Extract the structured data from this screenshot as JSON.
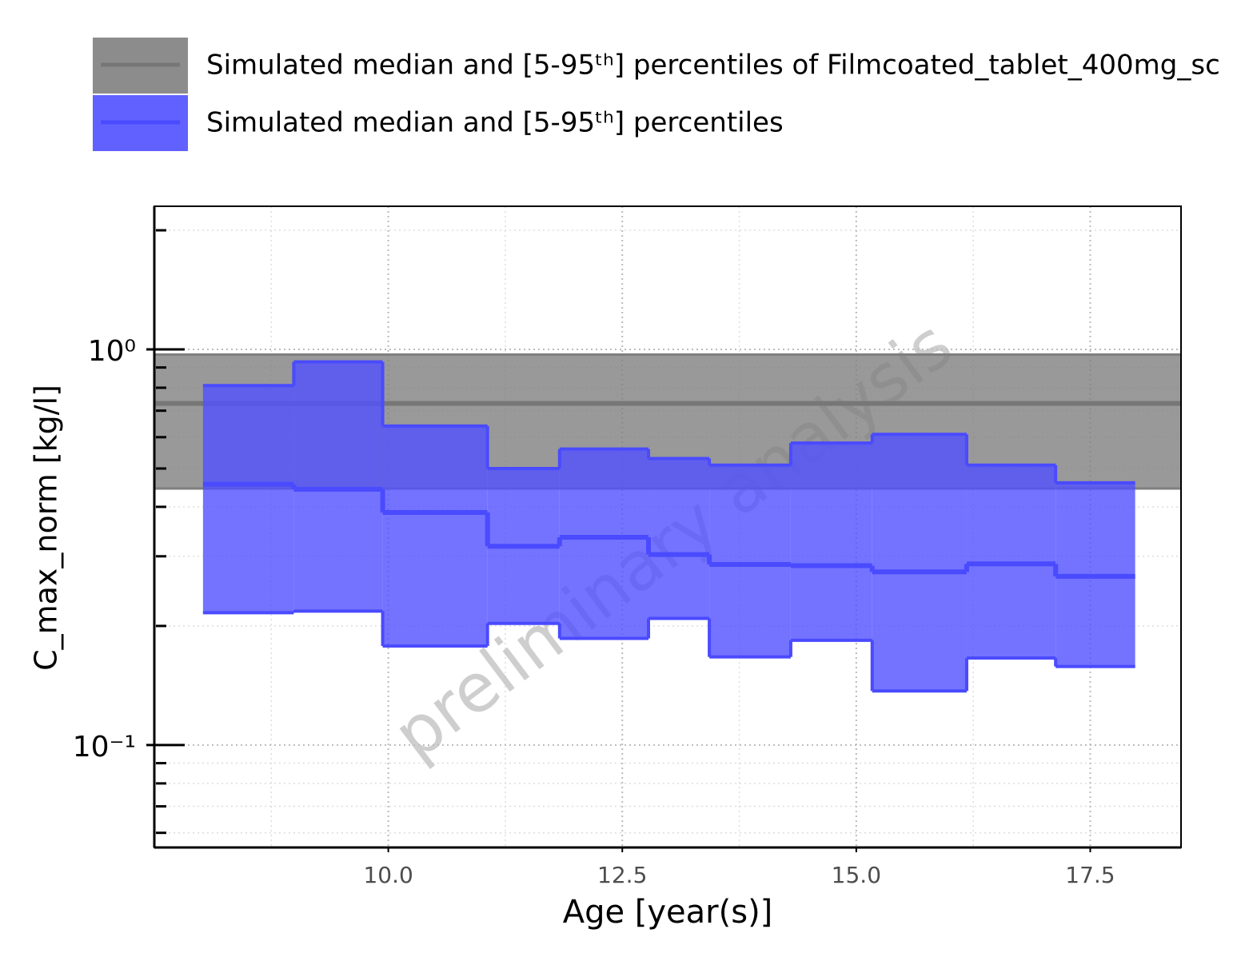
{
  "chart_data": {
    "type": "step-band",
    "xlabel": "Age [year(s)]",
    "ylabel": "C_max_norm [kg/l]",
    "watermark": "preliminary analysis",
    "xlim": [
      7.5,
      18.47
    ],
    "xticks": [
      {
        "value": 10,
        "label": "10.0"
      },
      {
        "value": 12.5,
        "label": "12.5"
      },
      {
        "value": 15,
        "label": "15.0"
      },
      {
        "value": 17.5,
        "label": "17.5"
      }
    ],
    "xminor": [
      8.75,
      11.25,
      13.75,
      16.25
    ],
    "ylim": [
      0.0551,
      2.3
    ],
    "yscale": "log",
    "yticks": [
      {
        "value": 0.1,
        "label": "10⁻¹"
      },
      {
        "value": 1,
        "label": "10⁰"
      }
    ],
    "yminor": [
      0.06,
      0.07,
      0.08,
      0.09,
      0.2,
      0.3,
      0.4,
      0.5,
      0.6,
      0.7,
      0.8,
      0.9,
      2
    ],
    "grid": true,
    "series": [
      {
        "name": "Simulated median and [5-95ᵗʰ] percentiles of Filmcoated_tablet_400mg_sc",
        "color": "#7f7f7f",
        "lower": 0.445,
        "median": 0.73,
        "upper": 0.97
      },
      {
        "name": "Simulated median and [5-95ᵗʰ] percentiles",
        "color": "#5050ff",
        "bins": [
          8.02,
          8.99,
          9.94,
          11.06,
          11.83,
          12.78,
          13.43,
          14.3,
          15.17,
          16.18,
          17.13,
          17.98
        ],
        "lower": [
          0.216,
          0.218,
          0.178,
          0.203,
          0.186,
          0.209,
          0.167,
          0.184,
          0.137,
          0.166,
          0.158
        ],
        "median": [
          0.456,
          0.443,
          0.387,
          0.318,
          0.335,
          0.303,
          0.286,
          0.284,
          0.274,
          0.287,
          0.267
        ],
        "upper": [
          0.81,
          0.93,
          0.64,
          0.5,
          0.56,
          0.53,
          0.51,
          0.58,
          0.61,
          0.51,
          0.46
        ]
      }
    ]
  }
}
